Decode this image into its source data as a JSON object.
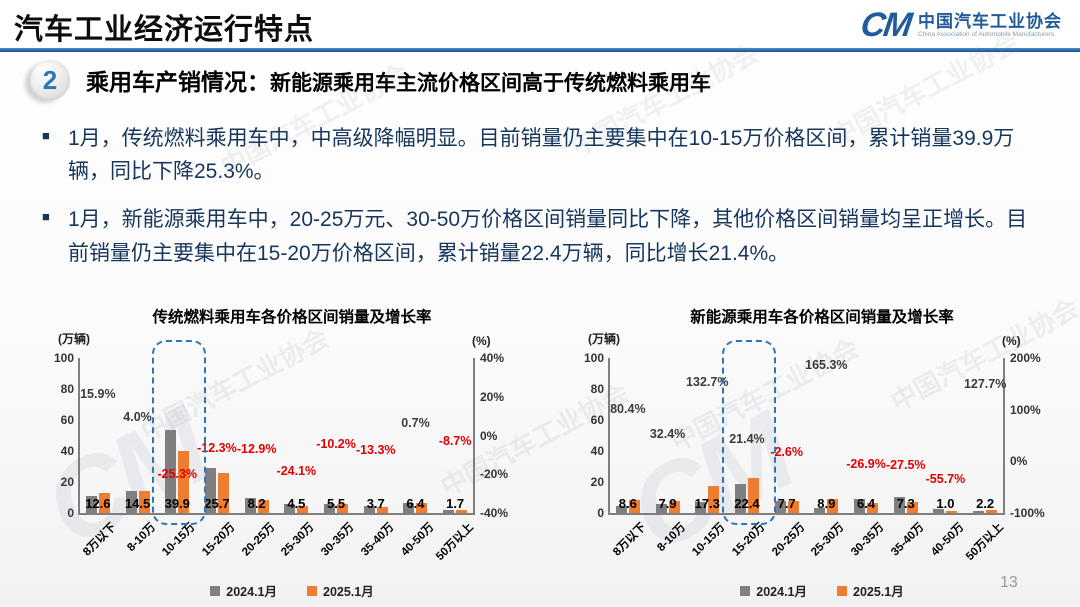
{
  "header": {
    "title": "汽车工业经济运行特点",
    "logo": {
      "mark": "CM",
      "name_cn": "中国汽车工业协会",
      "name_en": "China Association of Automobile Manufacturers"
    }
  },
  "section": {
    "number": "2",
    "title": "乘用车产销情况：",
    "subtitle": "新能源乘用车主流价格区间高于传统燃料乘用车"
  },
  "bullet_marker": "■",
  "bullets": [
    "1月，传统燃料乘用车中，中高级降幅明显。目前销量仍主要集中在10-15万价格区间，累计销量39.9万辆，同比下降25.3%。",
    "1月，新能源乘用车中，20-25万元、30-50万价格区间销量同比下降，其他价格区间销量均呈正增长。目前销量仍主要集中在15-20万价格区间，累计销量22.4万辆，同比增长21.4%。"
  ],
  "watermark": {
    "text": "中国汽车工业协会"
  },
  "page_number": "13",
  "colors": {
    "bar_2024": "#7F7F7F",
    "bar_2025": "#ED7D31",
    "negative_label": "#E30000",
    "positive_label": "#3B3B3B",
    "highlight_dashed": "#2E75B6",
    "accent_blue": "#2E75B6",
    "body_text_navy": "#17365D"
  },
  "chart_data": [
    {
      "type": "bar",
      "title": "传统燃料乘用车各价格区间销量及增长率",
      "unit_left": "(万辆)",
      "unit_right": "(%)",
      "categories": [
        "8万以下",
        "8-10万",
        "10-15万",
        "15-20万",
        "20-25万",
        "25-30万",
        "30-35万",
        "35-40万",
        "40-50万",
        "50万以上"
      ],
      "series": [
        {
          "name": "2024.1月",
          "color": "#7F7F7F",
          "values": [
            10.9,
            13.9,
            53.4,
            29.3,
            9.4,
            5.9,
            6.1,
            4.3,
            6.4,
            1.9
          ]
        },
        {
          "name": "2025.1月",
          "color": "#ED7D31",
          "values": [
            12.6,
            14.5,
            39.9,
            25.7,
            8.2,
            4.5,
            5.5,
            3.7,
            6.4,
            1.7
          ]
        }
      ],
      "value_labels_series": "2025.1月",
      "growth_labels": [
        {
          "text": "15.9%",
          "value": 15.9
        },
        {
          "text": "4.0%",
          "value": 4.0
        },
        {
          "text": "-25.3%",
          "value": -25.3
        },
        {
          "text": "-12.3%",
          "value": -12.3
        },
        {
          "text": "-12.9%",
          "value": -12.9
        },
        {
          "text": "-24.1%",
          "value": -24.1
        },
        {
          "text": "-10.2%",
          "value": -10.2
        },
        {
          "text": "-13.3%",
          "value": -13.3
        },
        {
          "text": "0.7%",
          "value": 0.7
        },
        {
          "text": "-8.7%",
          "value": -8.7
        }
      ],
      "left_ticks": [
        "100",
        "80",
        "60",
        "40",
        "20",
        "0"
      ],
      "left_max": 100,
      "right_ticks": [
        "40%",
        "20%",
        "0%",
        "-20%",
        "-40%"
      ],
      "right_range": [
        40,
        -40
      ],
      "highlight_index": 2,
      "legend_position": "bottom",
      "grid": false
    },
    {
      "type": "bar",
      "title": "新能源乘用车各价格区间销量及增长率",
      "unit_left": "(万辆)",
      "unit_right": "(%)",
      "categories": [
        "8万以下",
        "8-10万",
        "10-15万",
        "15-20万",
        "20-25万",
        "25-30万",
        "30-35万",
        "35-40万",
        "40-50万",
        "50万以上"
      ],
      "series": [
        {
          "name": "2024.1月",
          "color": "#7F7F7F",
          "values": [
            4.8,
            6.0,
            7.4,
            18.5,
            7.9,
            3.4,
            8.8,
            10.1,
            2.3,
            1.0
          ]
        },
        {
          "name": "2025.1月",
          "color": "#ED7D31",
          "values": [
            8.6,
            7.9,
            17.3,
            22.4,
            7.7,
            8.9,
            6.4,
            7.3,
            1.0,
            2.2
          ]
        }
      ],
      "value_labels_series": "2025.1月",
      "growth_labels": [
        {
          "text": "80.4%",
          "value": 80.4
        },
        {
          "text": "32.4%",
          "value": 32.4
        },
        {
          "text": "132.7%",
          "value": 132.7
        },
        {
          "text": "21.4%",
          "value": 21.4
        },
        {
          "text": "-2.6%",
          "value": -2.6
        },
        {
          "text": "165.3%",
          "value": 165.3
        },
        {
          "text": "-26.9%",
          "value": -26.9
        },
        {
          "text": "-27.5%",
          "value": -27.5
        },
        {
          "text": "-55.7%",
          "value": -55.7
        },
        {
          "text": "127.7%",
          "value": 127.7
        }
      ],
      "left_ticks": [
        "100",
        "80",
        "60",
        "40",
        "20",
        "0"
      ],
      "left_max": 100,
      "right_ticks": [
        "200%",
        "100%",
        "0%",
        "-100%"
      ],
      "right_range": [
        200,
        -100
      ],
      "highlight_index": 3,
      "legend_position": "bottom",
      "grid": false
    }
  ]
}
